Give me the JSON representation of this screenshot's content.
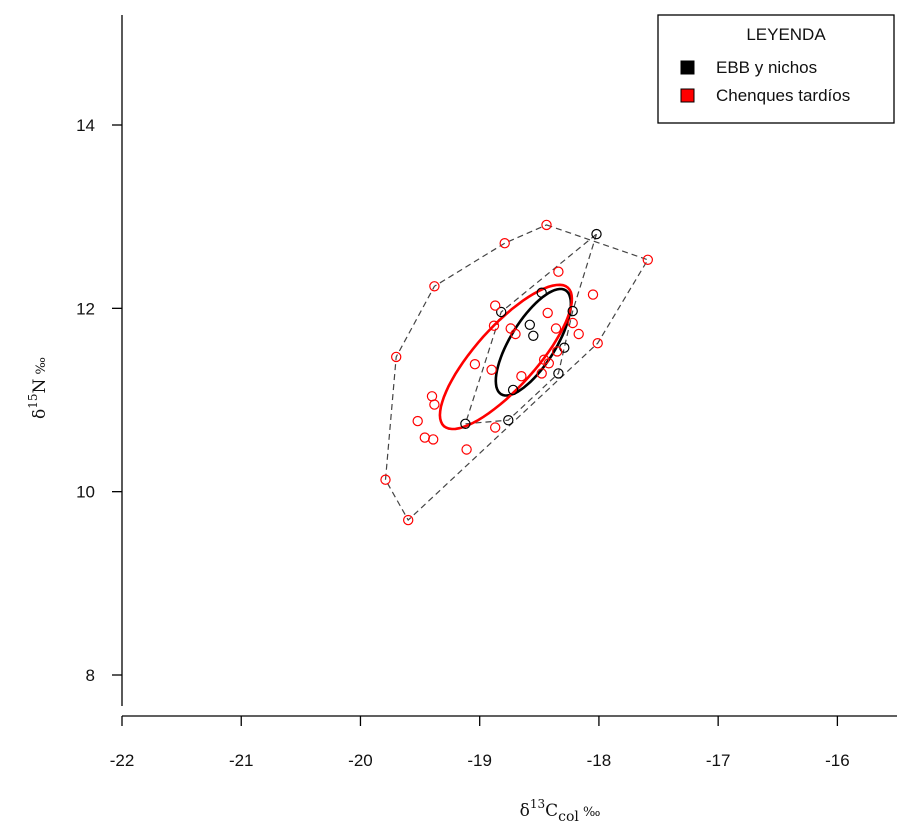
{
  "chart_data": {
    "type": "scatter",
    "xlabel": {
      "pre": "δ",
      "sup": "13",
      "main": "C",
      "sub": "col",
      "unit": " ‰"
    },
    "ylabel": {
      "pre": "δ",
      "sup": "15",
      "main": "N",
      "unit": " ‰"
    },
    "xlim": [
      -22,
      -15.5
    ],
    "ylim": [
      7.4,
      15.2
    ],
    "xticks": [
      -22,
      -21,
      -20,
      -19,
      -18,
      -17,
      -16
    ],
    "yticks": [
      8,
      10,
      12,
      14
    ],
    "grid": false,
    "legend": {
      "title": "LEYENDA",
      "placement": "top-right",
      "entries": [
        {
          "label": "EBB y nichos",
          "color": "#000000"
        },
        {
          "label": "Chenques tardíos",
          "color": "#ff0000"
        }
      ]
    },
    "series": [
      {
        "name": "EBB y nichos",
        "color": "#000000",
        "points": [
          {
            "x": -18.02,
            "y": 12.81
          },
          {
            "x": -18.48,
            "y": 12.17
          },
          {
            "x": -18.22,
            "y": 11.97
          },
          {
            "x": -18.82,
            "y": 11.96
          },
          {
            "x": -18.58,
            "y": 11.82
          },
          {
            "x": -18.55,
            "y": 11.7
          },
          {
            "x": -18.29,
            "y": 11.57
          },
          {
            "x": -18.34,
            "y": 11.29
          },
          {
            "x": -18.72,
            "y": 11.11
          },
          {
            "x": -19.12,
            "y": 10.74
          },
          {
            "x": -18.76,
            "y": 10.78
          }
        ],
        "hull": [
          {
            "x": -18.02,
            "y": 12.81
          },
          {
            "x": -18.22,
            "y": 11.97
          },
          {
            "x": -18.29,
            "y": 11.57
          },
          {
            "x": -18.34,
            "y": 11.29
          },
          {
            "x": -18.76,
            "y": 10.78
          },
          {
            "x": -19.12,
            "y": 10.74
          },
          {
            "x": -18.82,
            "y": 11.96
          }
        ],
        "ellipse": {
          "cx": -18.55,
          "cy": 11.63,
          "rx": 0.2,
          "ry": 0.63,
          "angle_deg": 24
        }
      },
      {
        "name": "Chenques tardíos",
        "color": "#ff0000",
        "points": [
          {
            "x": -18.44,
            "y": 12.91
          },
          {
            "x": -18.79,
            "y": 12.71
          },
          {
            "x": -17.59,
            "y": 12.53
          },
          {
            "x": -18.34,
            "y": 12.4
          },
          {
            "x": -19.38,
            "y": 12.24
          },
          {
            "x": -18.05,
            "y": 12.15
          },
          {
            "x": -18.87,
            "y": 12.03
          },
          {
            "x": -18.43,
            "y": 11.95
          },
          {
            "x": -18.22,
            "y": 11.84
          },
          {
            "x": -18.88,
            "y": 11.81
          },
          {
            "x": -18.74,
            "y": 11.78
          },
          {
            "x": -18.36,
            "y": 11.78
          },
          {
            "x": -18.7,
            "y": 11.72
          },
          {
            "x": -18.17,
            "y": 11.72
          },
          {
            "x": -18.01,
            "y": 11.62
          },
          {
            "x": -18.35,
            "y": 11.53
          },
          {
            "x": -19.7,
            "y": 11.47
          },
          {
            "x": -18.46,
            "y": 11.44
          },
          {
            "x": -18.42,
            "y": 11.4
          },
          {
            "x": -19.04,
            "y": 11.39
          },
          {
            "x": -18.9,
            "y": 11.33
          },
          {
            "x": -18.48,
            "y": 11.29
          },
          {
            "x": -18.65,
            "y": 11.26
          },
          {
            "x": -19.4,
            "y": 11.04
          },
          {
            "x": -19.38,
            "y": 10.95
          },
          {
            "x": -19.52,
            "y": 10.77
          },
          {
            "x": -18.87,
            "y": 10.7
          },
          {
            "x": -19.46,
            "y": 10.59
          },
          {
            "x": -19.39,
            "y": 10.57
          },
          {
            "x": -19.11,
            "y": 10.46
          },
          {
            "x": -19.79,
            "y": 10.13
          },
          {
            "x": -19.6,
            "y": 9.69
          }
        ],
        "hull": [
          {
            "x": -18.44,
            "y": 12.91
          },
          {
            "x": -17.59,
            "y": 12.53
          },
          {
            "x": -18.01,
            "y": 11.62
          },
          {
            "x": -19.6,
            "y": 9.69
          },
          {
            "x": -19.79,
            "y": 10.13
          },
          {
            "x": -19.7,
            "y": 11.47
          },
          {
            "x": -19.38,
            "y": 12.24
          },
          {
            "x": -18.79,
            "y": 12.71
          }
        ],
        "ellipse": {
          "cx": -18.78,
          "cy": 11.47,
          "rx": 0.28,
          "ry": 0.92,
          "angle_deg": 33
        }
      }
    ]
  }
}
